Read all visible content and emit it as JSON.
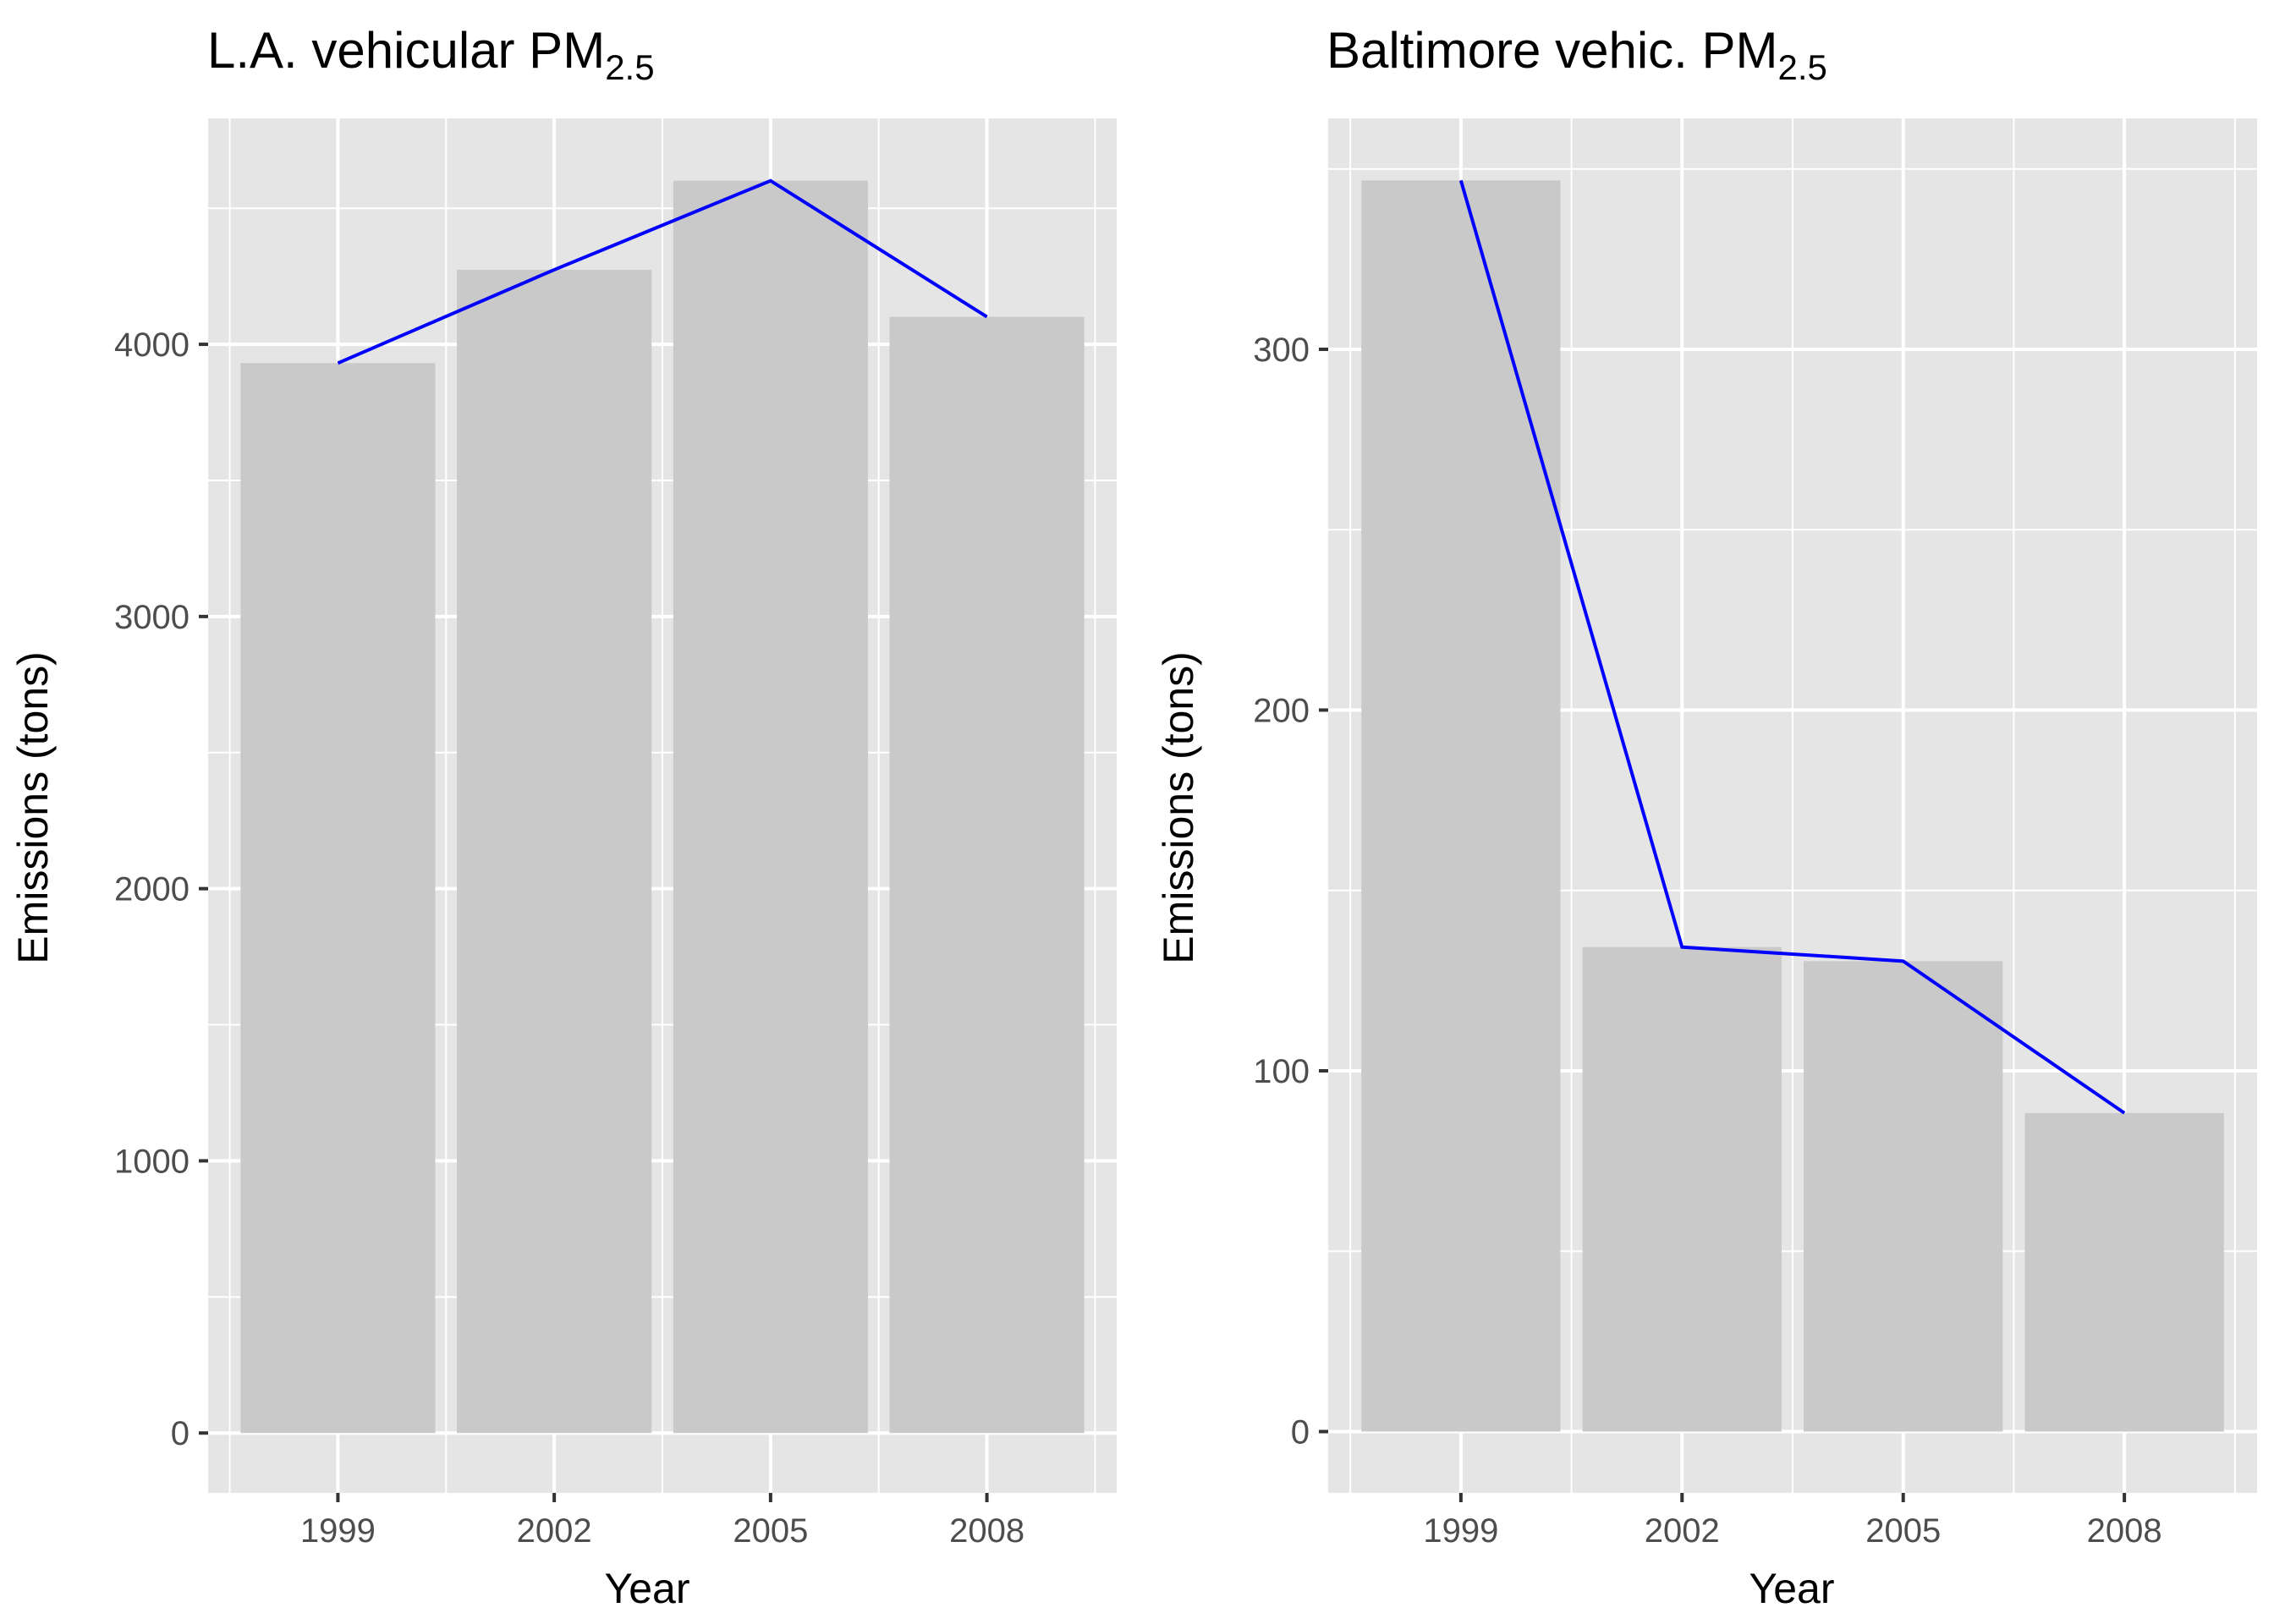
{
  "chart_data": [
    {
      "type": "bar",
      "title": "L.A. vehicular PM",
      "title_subscript": "2.5",
      "xlabel": "Year",
      "ylabel": "Emissions (tons)",
      "categories": [
        "1999",
        "2002",
        "2005",
        "2008"
      ],
      "values": [
        3931,
        4274,
        4601,
        4101
      ],
      "line_values": [
        3931,
        4274,
        4601,
        4101
      ],
      "ylim": [
        -220,
        4830
      ],
      "yticks": [
        0,
        1000,
        2000,
        3000,
        4000
      ],
      "yminor": [
        500,
        1500,
        2500,
        3500,
        4500
      ],
      "ytick_labels": [
        "0",
        "1000",
        "2000",
        "3000",
        "4000"
      ],
      "grid": true,
      "legend": "none",
      "bar_color": "#c9c9c9",
      "line_color": "#0000ff",
      "panel_color": "#e5e5e5"
    },
    {
      "type": "bar",
      "title": "Baltimore vehic. PM",
      "title_subscript": "2.5",
      "xlabel": "Year",
      "ylabel": "Emissions (tons)",
      "categories": [
        "1999",
        "2002",
        "2005",
        "2008"
      ],
      "values": [
        346.8,
        134.3,
        130.4,
        88.3
      ],
      "line_values": [
        346.8,
        134.3,
        130.4,
        88.3
      ],
      "ylim": [
        -17,
        364
      ],
      "yticks": [
        0,
        100,
        200,
        300
      ],
      "yminor": [
        50,
        150,
        250,
        350
      ],
      "ytick_labels": [
        "0",
        "100",
        "200",
        "300"
      ],
      "grid": true,
      "legend": "none",
      "bar_color": "#c9c9c9",
      "line_color": "#0000ff",
      "panel_color": "#e5e5e5"
    }
  ]
}
